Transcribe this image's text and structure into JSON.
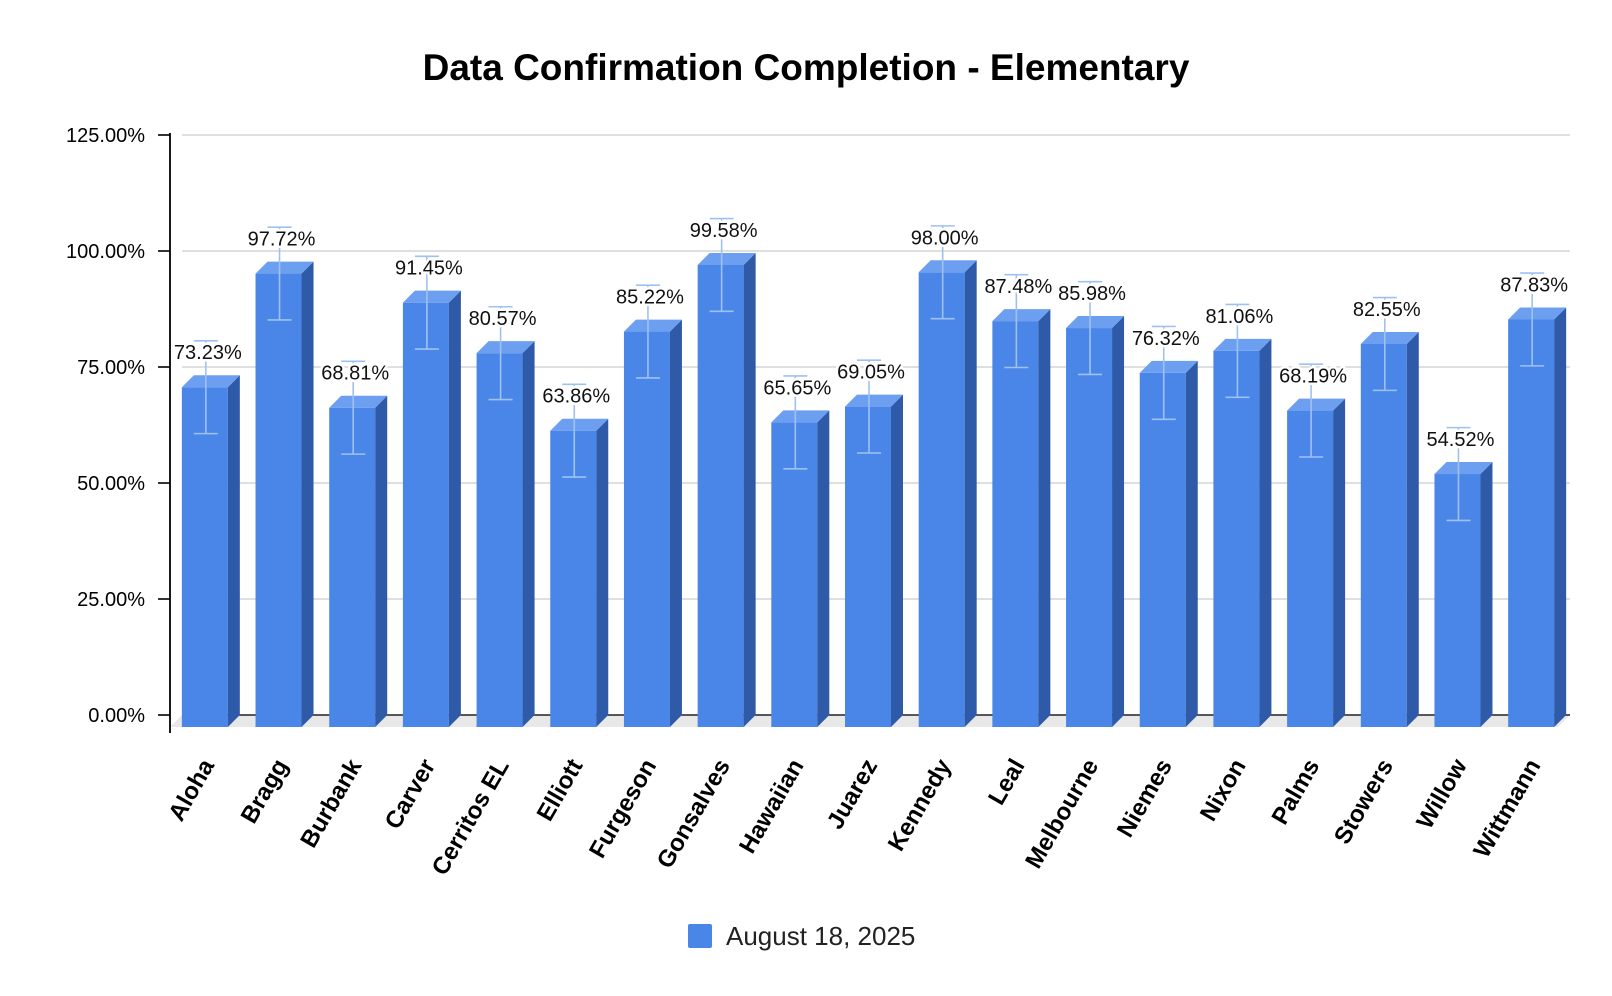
{
  "chart_data": {
    "type": "bar",
    "title": "Data Confirmation Completion - Elementary",
    "xlabel": "",
    "ylabel": "",
    "ylim": [
      0,
      1.25
    ],
    "yticks": [
      "0.00%",
      "25.00%",
      "50.00%",
      "75.00%",
      "100.00%",
      "125.00%"
    ],
    "categories": [
      "Aloha",
      "Bragg",
      "Burbank",
      "Carver",
      "Cerritos EL",
      "Elliott",
      "Furgeson",
      "Gonsalves",
      "Hawaiian",
      "Juarez",
      "Kennedy",
      "Leal",
      "Melbourne",
      "Niemes",
      "Nixon",
      "Palms",
      "Stowers",
      "Willow",
      "Wittmann"
    ],
    "series": [
      {
        "name": "August 18, 2025",
        "color": "#4a86e8",
        "values": [
          0.7323,
          0.9772,
          0.6881,
          0.9145,
          0.8057,
          0.6386,
          0.8522,
          0.9958,
          0.6565,
          0.6905,
          0.98,
          0.8748,
          0.8598,
          0.7632,
          0.8106,
          0.6819,
          0.8255,
          0.5452,
          0.8783
        ],
        "labels": [
          "73.23%",
          "97.72%",
          "68.81%",
          "91.45%",
          "80.57%",
          "63.86%",
          "85.22%",
          "99.58%",
          "65.65%",
          "69.05%",
          "98.00%",
          "87.48%",
          "85.98%",
          "76.32%",
          "81.06%",
          "68.19%",
          "82.55%",
          "54.52%",
          "87.83%"
        ]
      }
    ],
    "grid": true,
    "legend": "bottom",
    "error_bars": true,
    "error_margin": 0.1
  }
}
